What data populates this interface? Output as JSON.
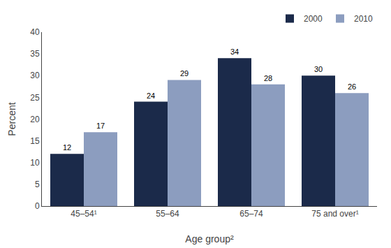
{
  "chart_data": {
    "type": "bar",
    "xlabel": "Age group²",
    "ylabel": "Percent",
    "categories": [
      "45–54¹",
      "55–64",
      "65–74",
      "75 and over¹"
    ],
    "series": [
      {
        "name": "2000",
        "color": "#1b2a4a",
        "values": [
          12,
          24,
          34,
          30
        ]
      },
      {
        "name": "2010",
        "color": "#8c9dbf",
        "values": [
          17,
          29,
          28,
          26
        ]
      }
    ],
    "ylim": [
      0,
      40
    ],
    "yticks": [
      0,
      5,
      10,
      15,
      20,
      25,
      30,
      35,
      40
    ],
    "grid": false,
    "legend": "upper right",
    "data_labels": true
  }
}
